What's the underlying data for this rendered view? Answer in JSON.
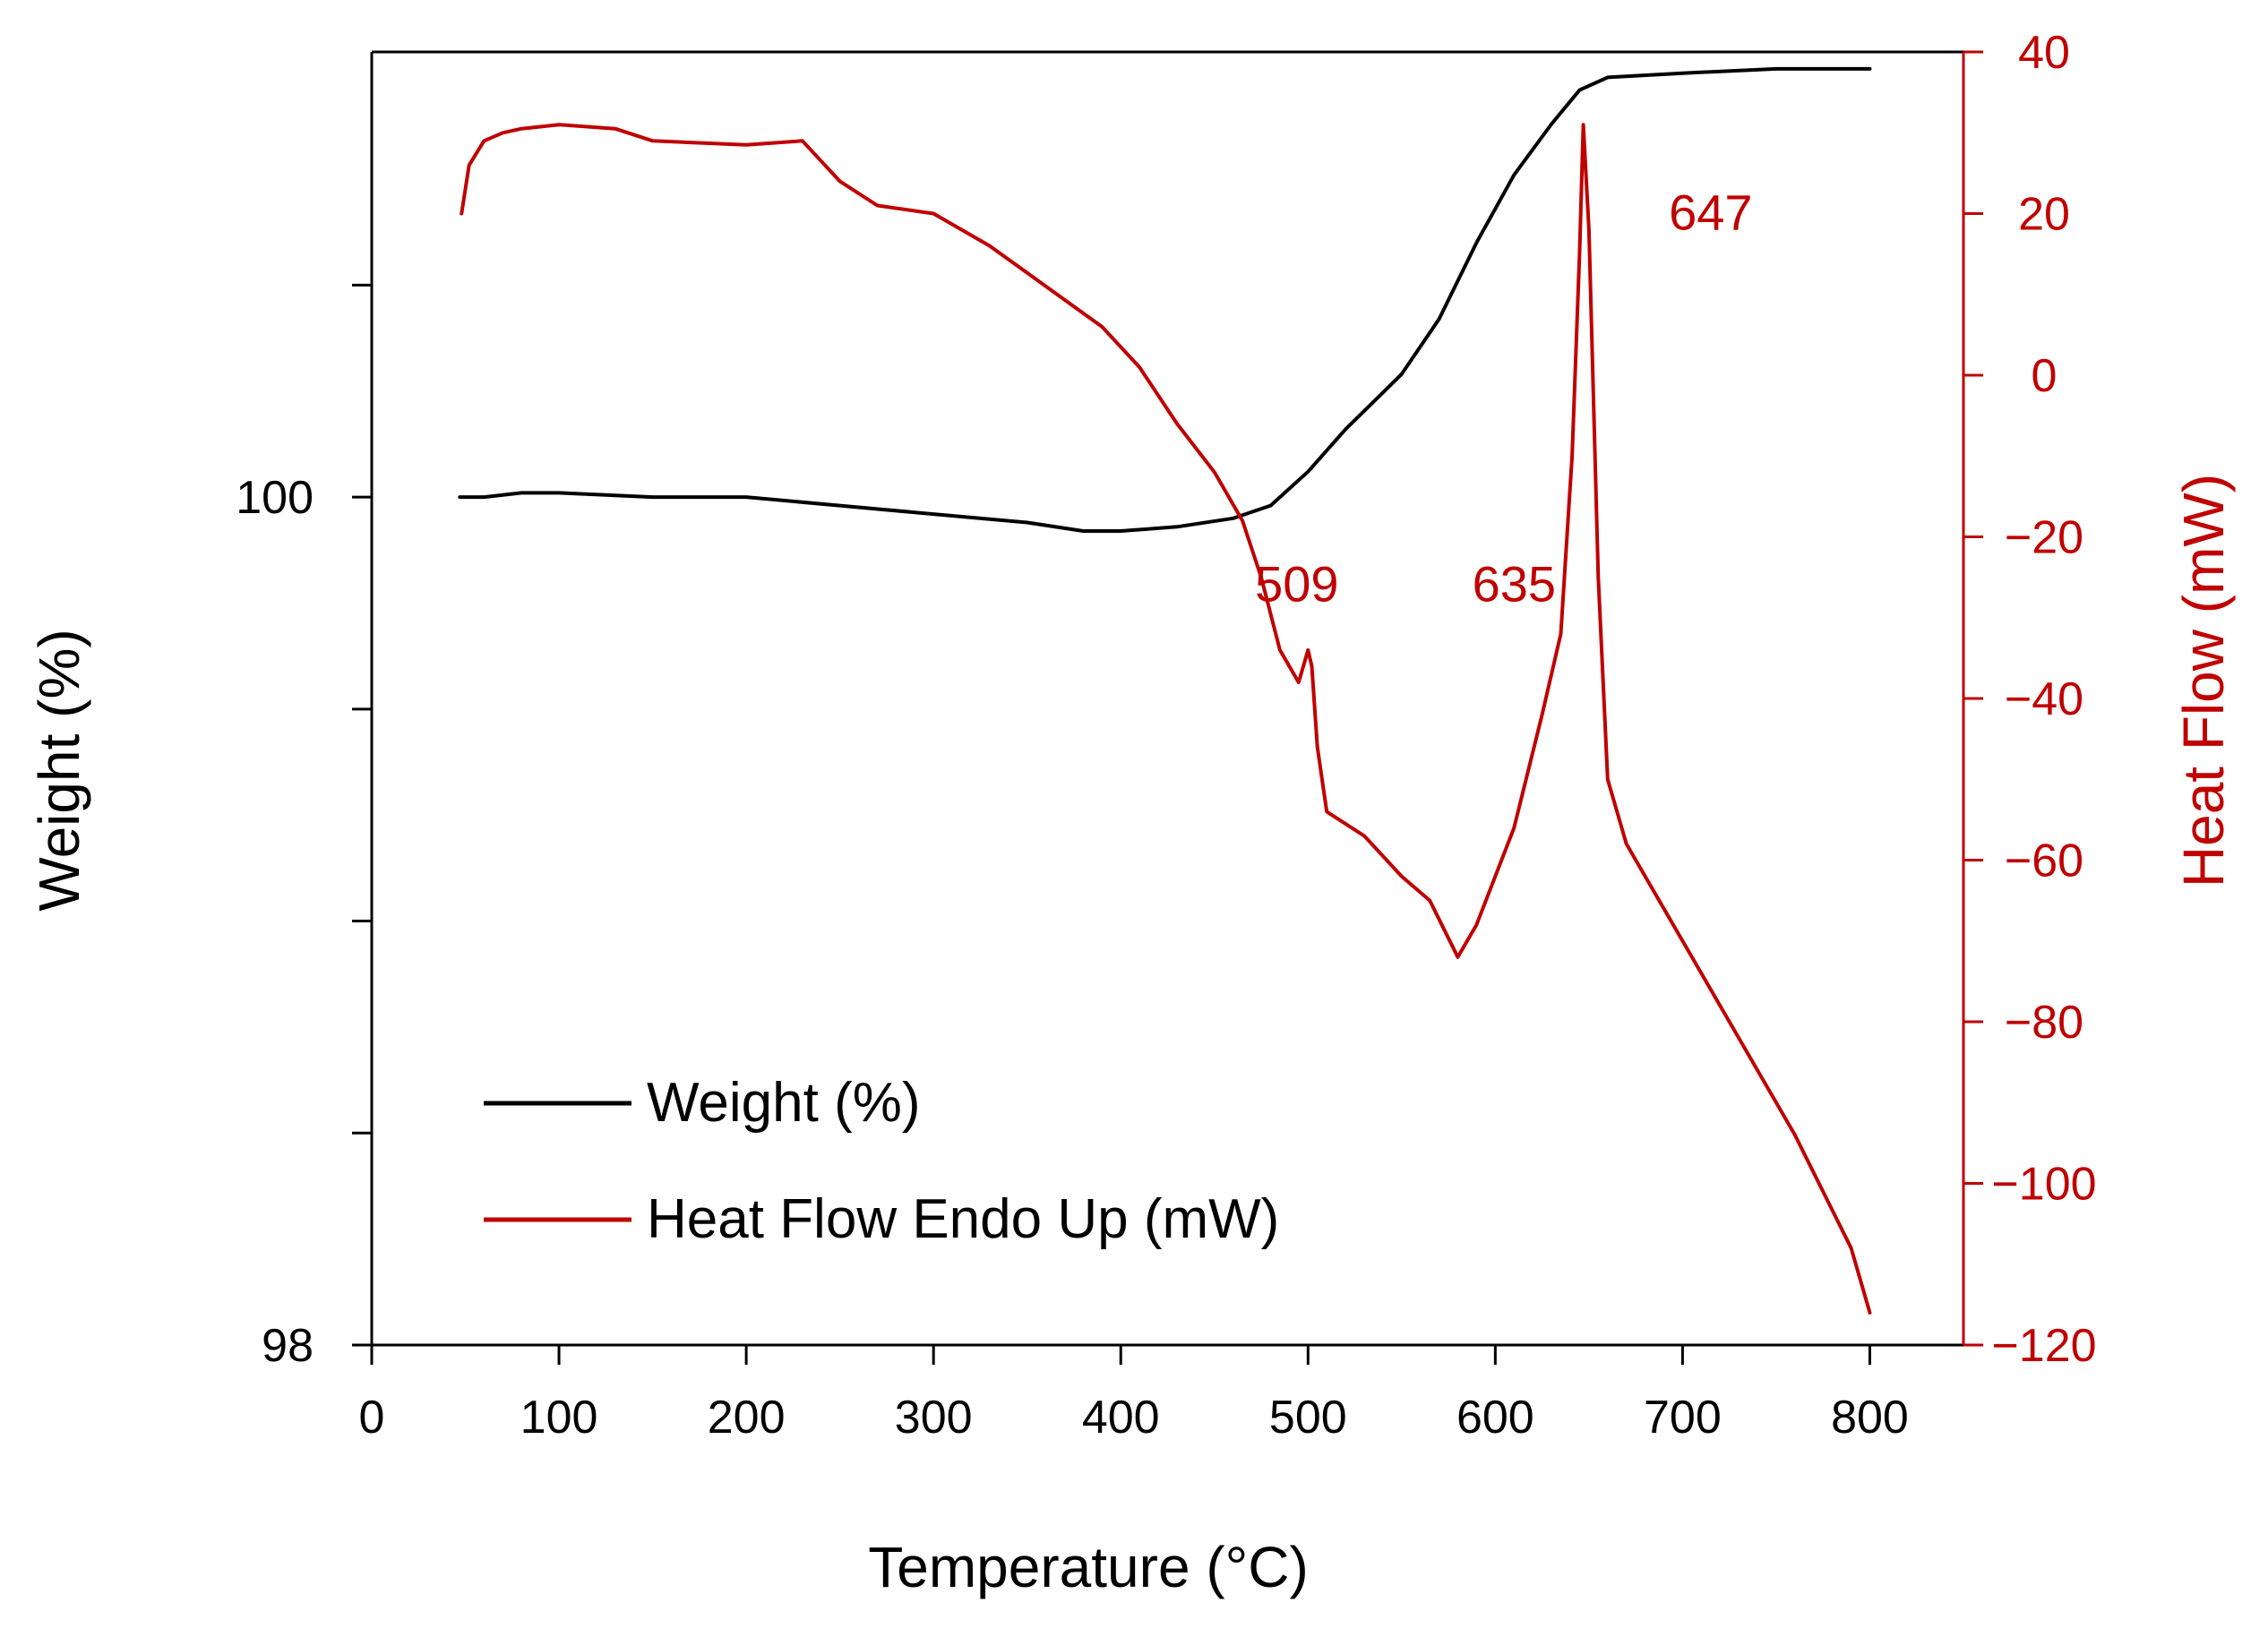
{
  "chart_data": {
    "type": "line",
    "title": "",
    "xlabel": "Temperature (°C)",
    "ylabel": "Weight (%)",
    "y2label": "Heat Flow (mW)",
    "xlim": [
      0,
      850
    ],
    "ylim": [
      98,
      101.05
    ],
    "y2lim": [
      -120,
      40
    ],
    "x_ticks": [
      0,
      100,
      200,
      300,
      400,
      500,
      600,
      700,
      800
    ],
    "y_ticks": [
      98,
      100
    ],
    "y_minor_ticks": [
      98.5,
      99.0,
      99.5,
      100.5
    ],
    "y2_ticks": [
      40,
      20,
      0,
      -20,
      -40,
      -60,
      -80,
      -100,
      -120
    ],
    "grid": false,
    "legend": {
      "position": "bottom-left",
      "entries": [
        "Weight (%)",
        "Heat Flow Endo Up (mW)"
      ]
    },
    "annotations": [
      "509",
      "635",
      "647"
    ],
    "annotation_points": [
      {
        "label": "509",
        "x": 494,
        "y": -26,
        "axis": "y2"
      },
      {
        "label": "635",
        "x": 610,
        "y": -26,
        "axis": "y2"
      },
      {
        "label": "647",
        "x": 715,
        "y": 20,
        "axis": "y2"
      }
    ],
    "colors": {
      "weight": "#000000",
      "heat": "#c00000",
      "frame": "#000000"
    },
    "series": [
      {
        "name": "Weight (%)",
        "axis": "y",
        "color": "#000000",
        "x": [
          47,
          60,
          80,
          100,
          150,
          200,
          250,
          300,
          350,
          380,
          400,
          430,
          460,
          480,
          500,
          520,
          550,
          570,
          590,
          610,
          630,
          645,
          660,
          700,
          750,
          800
        ],
        "y": [
          100.0,
          100.0,
          100.01,
          100.01,
          100.0,
          100.0,
          99.98,
          99.96,
          99.94,
          99.92,
          99.92,
          99.93,
          99.95,
          99.98,
          100.06,
          100.16,
          100.29,
          100.42,
          100.6,
          100.76,
          100.88,
          100.96,
          100.99,
          101.0,
          101.01,
          101.01
        ]
      },
      {
        "name": "Heat Flow Endo Up (mW)",
        "axis": "y2",
        "color": "#c00000",
        "x": [
          48,
          52,
          60,
          70,
          80,
          100,
          130,
          150,
          200,
          230,
          250,
          270,
          300,
          330,
          360,
          390,
          410,
          430,
          450,
          465,
          475,
          485,
          495,
          500,
          502,
          505,
          510,
          530,
          550,
          565,
          580,
          590,
          610,
          625,
          635,
          641,
          645,
          647,
          650,
          655,
          660,
          670,
          690,
          710,
          730,
          760,
          790,
          800
        ],
        "y": [
          20,
          26,
          29,
          30,
          30.5,
          31,
          30.5,
          29,
          28.5,
          29,
          24,
          21,
          20,
          16,
          11,
          6,
          1,
          -6,
          -12,
          -18,
          -25,
          -34,
          -38,
          -34,
          -36,
          -46,
          -54,
          -57,
          -62,
          -65,
          -72,
          -68,
          -56,
          -42,
          -32,
          -10,
          15,
          31,
          18,
          -25,
          -50,
          -58,
          -66,
          -74,
          -82,
          -94,
          -108,
          -116
        ]
      }
    ]
  }
}
